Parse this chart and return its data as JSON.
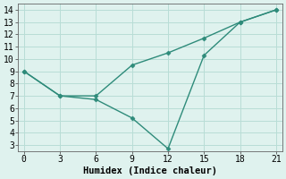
{
  "line1_x": [
    0,
    3,
    6,
    9,
    12,
    15,
    18,
    21
  ],
  "line1_y": [
    9,
    7,
    7,
    9.5,
    10.5,
    11.7,
    13,
    14
  ],
  "line2_x": [
    0,
    3,
    6,
    9,
    12,
    15,
    18,
    21
  ],
  "line2_y": [
    9,
    7,
    6.7,
    5.2,
    2.7,
    10.3,
    13,
    14
  ],
  "line_color": "#2e8b7a",
  "bg_color": "#dff2ee",
  "grid_color": "#b8ddd6",
  "xlabel": "Humidex (Indice chaleur)",
  "xlim": [
    -0.5,
    21.5
  ],
  "ylim": [
    2.5,
    14.5
  ],
  "xticks": [
    0,
    3,
    6,
    9,
    12,
    15,
    18,
    21
  ],
  "yticks": [
    3,
    4,
    5,
    6,
    7,
    8,
    9,
    10,
    11,
    12,
    13,
    14
  ],
  "marker": "D",
  "markersize": 2.5,
  "linewidth": 1.0,
  "xlabel_fontsize": 7.5,
  "tick_fontsize": 7
}
